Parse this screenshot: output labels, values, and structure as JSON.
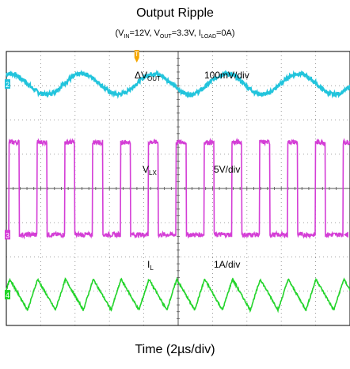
{
  "header": {
    "title": "Output Ripple",
    "conditions": [
      {
        "sym": "V",
        "sub": "IN",
        "val": "=12V"
      },
      {
        "sym": "V",
        "sub": "OUT",
        "val": "=3.3V"
      },
      {
        "sym": "I",
        "sub": "LOAD",
        "val": "=0A"
      }
    ]
  },
  "chart_data": {
    "type": "line",
    "title": "Output Ripple",
    "xlabel": "Time (2µs/div)",
    "grid": {
      "divisions_x": 10,
      "divisions_y": 8,
      "visible": true
    },
    "colors": {
      "vout": "#22c4dc",
      "vlx": "#d43ed6",
      "il": "#22d42a",
      "grid": "#808080",
      "frame": "#000000"
    },
    "trigger_marker": {
      "label": "T",
      "color": "#f5a700"
    },
    "series": [
      {
        "id": "vout",
        "symbol": "ΔV",
        "symbol_sub": "OUT",
        "scale": "100mV/div",
        "channel": "2",
        "shape": "ripple",
        "period_div": 2.1,
        "amplitude_div": 0.3,
        "baseline_div": 7.05
      },
      {
        "id": "vlx",
        "symbol": "V",
        "symbol_sub": "LX",
        "scale": "5V/div",
        "channel": "3",
        "shape": "pulse",
        "period_div": 0.81,
        "high_div": 1.2,
        "high_level_div": 5.35,
        "low_level_div": 2.65,
        "first_rise_div": 0.08
      },
      {
        "id": "il",
        "symbol": "I",
        "symbol_sub": "L",
        "scale": "1A/div",
        "channel": "4",
        "shape": "triangle",
        "period_div": 0.81,
        "peak_div": 1.35,
        "trough_div": 0.45,
        "first_peak_div": 0.1
      }
    ]
  }
}
